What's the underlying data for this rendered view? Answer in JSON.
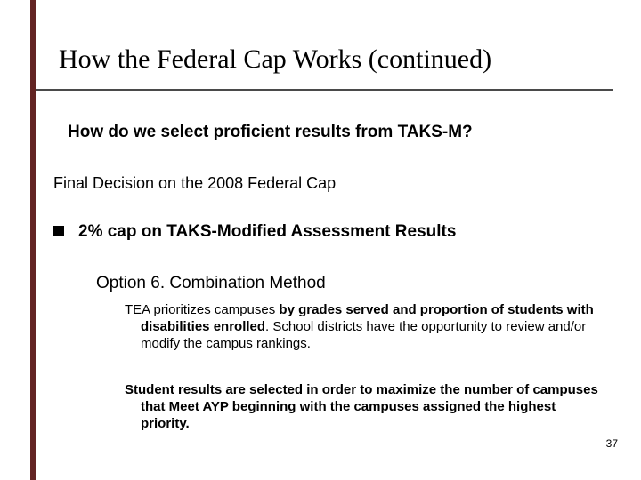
{
  "colors": {
    "left_bar": "#632423",
    "rule": "#4a4a4a",
    "background": "#ffffff",
    "text": "#000000"
  },
  "title": "How the Federal Cap Works (continued)",
  "subtitle": "How do we select proficient results from TAKS-M?",
  "decision": "Final Decision on the 2008 Federal Cap",
  "bullet": "2% cap on TAKS-Modified Assessment Results",
  "option_line": "Option 6.  Combination Method",
  "para1_lead": "TEA prioritizes campuses ",
  "para1_bold": "by grades served and proportion of students with disabilities enrolled",
  "para1_tail": ".  School districts have the opportunity to review and/or modify the campus rankings.",
  "para2": "Student results are selected in order to maximize the number of campuses that Meet AYP beginning with the campuses assigned the highest priority.",
  "page_number": "37"
}
